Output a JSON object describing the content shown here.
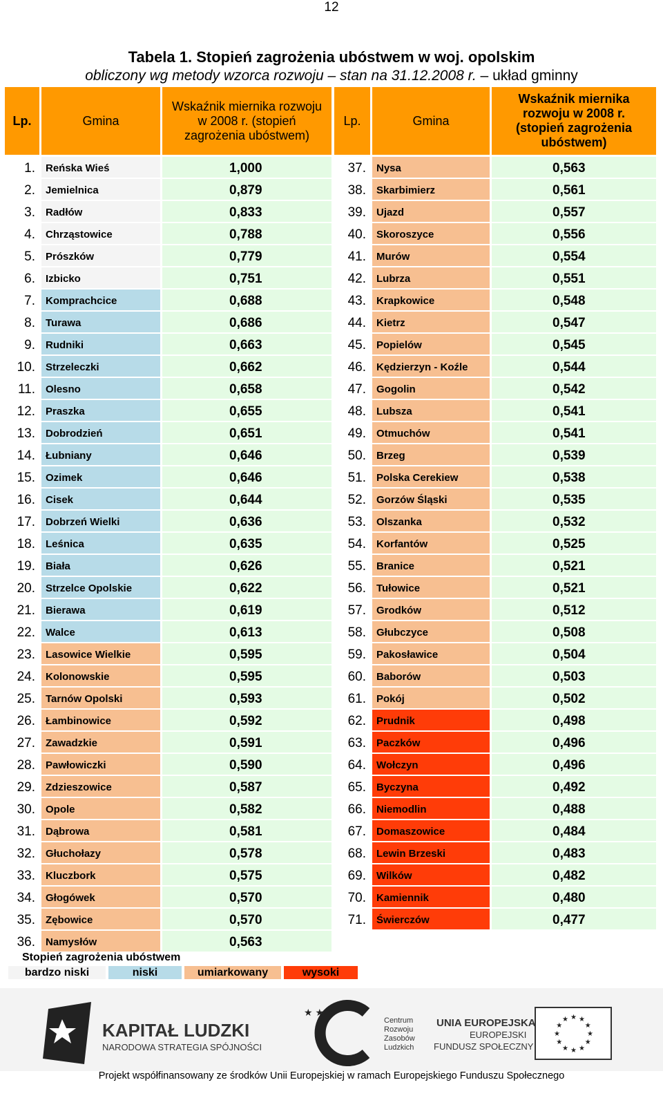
{
  "page_number": "12",
  "title_line1": "Tabela 1. Stopień zagrożenia ubóstwem w woj. opolskim",
  "title_line2_main": "obliczony wg metody wzorca rozwoju – stan na 31.12.2008 r.",
  "title_line2_tail": " – układ gminny",
  "headers": {
    "lp": "Lp.",
    "gmina": "Gmina",
    "wskaznik_left": "Wskaźnik miernika rozwoju w 2008 r. (stopień zagrożenia ubóstwem)",
    "wskaznik_right": "Wskaźnik miernika rozwoju w 2008 r. (stopień zagrożenia ubóstwem)"
  },
  "rows_left": [
    {
      "lp": "1.",
      "gmina": "Reńska Wieś",
      "value": "1,000",
      "level": "vlow"
    },
    {
      "lp": "2.",
      "gmina": "Jemielnica",
      "value": "0,879",
      "level": "vlow"
    },
    {
      "lp": "3.",
      "gmina": "Radłów",
      "value": "0,833",
      "level": "vlow"
    },
    {
      "lp": "4.",
      "gmina": "Chrząstowice",
      "value": "0,788",
      "level": "vlow"
    },
    {
      "lp": "5.",
      "gmina": "Prószków",
      "value": "0,779",
      "level": "vlow"
    },
    {
      "lp": "6.",
      "gmina": "Izbicko",
      "value": "0,751",
      "level": "vlow"
    },
    {
      "lp": "7.",
      "gmina": "Komprachcice",
      "value": "0,688",
      "level": "low"
    },
    {
      "lp": "8.",
      "gmina": "Turawa",
      "value": "0,686",
      "level": "low"
    },
    {
      "lp": "9.",
      "gmina": "Rudniki",
      "value": "0,663",
      "level": "low"
    },
    {
      "lp": "10.",
      "gmina": "Strzeleczki",
      "value": "0,662",
      "level": "low"
    },
    {
      "lp": "11.",
      "gmina": "Olesno",
      "value": "0,658",
      "level": "low"
    },
    {
      "lp": "12.",
      "gmina": "Praszka",
      "value": "0,655",
      "level": "low"
    },
    {
      "lp": "13.",
      "gmina": "Dobrodzień",
      "value": "0,651",
      "level": "low"
    },
    {
      "lp": "14.",
      "gmina": "Łubniany",
      "value": "0,646",
      "level": "low"
    },
    {
      "lp": "15.",
      "gmina": "Ozimek",
      "value": "0,646",
      "level": "low"
    },
    {
      "lp": "16.",
      "gmina": "Cisek",
      "value": "0,644",
      "level": "low"
    },
    {
      "lp": "17.",
      "gmina": "Dobrzeń Wielki",
      "value": "0,636",
      "level": "low"
    },
    {
      "lp": "18.",
      "gmina": "Leśnica",
      "value": "0,635",
      "level": "low"
    },
    {
      "lp": "19.",
      "gmina": "Biała",
      "value": "0,626",
      "level": "low"
    },
    {
      "lp": "20.",
      "gmina": "Strzelce Opolskie",
      "value": "0,622",
      "level": "low"
    },
    {
      "lp": "21.",
      "gmina": "Bierawa",
      "value": "0,619",
      "level": "low"
    },
    {
      "lp": "22.",
      "gmina": "Walce",
      "value": "0,613",
      "level": "low"
    },
    {
      "lp": "23.",
      "gmina": "Lasowice Wielkie",
      "value": "0,595",
      "level": "mod"
    },
    {
      "lp": "24.",
      "gmina": "Kolonowskie",
      "value": "0,595",
      "level": "mod"
    },
    {
      "lp": "25.",
      "gmina": "Tarnów Opolski",
      "value": "0,593",
      "level": "mod"
    },
    {
      "lp": "26.",
      "gmina": "Łambinowice",
      "value": "0,592",
      "level": "mod"
    },
    {
      "lp": "27.",
      "gmina": "Zawadzkie",
      "value": "0,591",
      "level": "mod"
    },
    {
      "lp": "28.",
      "gmina": "Pawłowiczki",
      "value": "0,590",
      "level": "mod"
    },
    {
      "lp": "29.",
      "gmina": "Zdzieszowice",
      "value": "0,587",
      "level": "mod"
    },
    {
      "lp": "30.",
      "gmina": "Opole",
      "value": "0,582",
      "level": "mod"
    },
    {
      "lp": "31.",
      "gmina": "Dąbrowa",
      "value": "0,581",
      "level": "mod"
    },
    {
      "lp": "32.",
      "gmina": "Głuchołazy",
      "value": "0,578",
      "level": "mod"
    },
    {
      "lp": "33.",
      "gmina": "Kluczbork",
      "value": "0,575",
      "level": "mod"
    },
    {
      "lp": "34.",
      "gmina": "Głogówek",
      "value": "0,570",
      "level": "mod"
    },
    {
      "lp": "35.",
      "gmina": "Zębowice",
      "value": "0,570",
      "level": "mod"
    },
    {
      "lp": "36.",
      "gmina": "Namysłów",
      "value": "0,563",
      "level": "mod"
    }
  ],
  "rows_right": [
    {
      "lp": "37.",
      "gmina": "Nysa",
      "value": "0,563",
      "level": "mod"
    },
    {
      "lp": "38.",
      "gmina": "Skarbimierz",
      "value": "0,561",
      "level": "mod"
    },
    {
      "lp": "39.",
      "gmina": "Ujazd",
      "value": "0,557",
      "level": "mod"
    },
    {
      "lp": "40.",
      "gmina": "Skoroszyce",
      "value": "0,556",
      "level": "mod"
    },
    {
      "lp": "41.",
      "gmina": "Murów",
      "value": "0,554",
      "level": "mod"
    },
    {
      "lp": "42.",
      "gmina": "Lubrza",
      "value": "0,551",
      "level": "mod"
    },
    {
      "lp": "43.",
      "gmina": "Krapkowice",
      "value": "0,548",
      "level": "mod"
    },
    {
      "lp": "44.",
      "gmina": "Kietrz",
      "value": "0,547",
      "level": "mod"
    },
    {
      "lp": "45.",
      "gmina": "Popielów",
      "value": "0,545",
      "level": "mod"
    },
    {
      "lp": "46.",
      "gmina": "Kędzierzyn - Koźle",
      "value": "0,544",
      "level": "mod"
    },
    {
      "lp": "47.",
      "gmina": "Gogolin",
      "value": "0,542",
      "level": "mod"
    },
    {
      "lp": "48.",
      "gmina": "Lubsza",
      "value": "0,541",
      "level": "mod"
    },
    {
      "lp": "49.",
      "gmina": "Otmuchów",
      "value": "0,541",
      "level": "mod"
    },
    {
      "lp": "50.",
      "gmina": "Brzeg",
      "value": "0,539",
      "level": "mod"
    },
    {
      "lp": "51.",
      "gmina": "Polska Cerekiew",
      "value": "0,538",
      "level": "mod"
    },
    {
      "lp": "52.",
      "gmina": "Gorzów Śląski",
      "value": "0,535",
      "level": "mod"
    },
    {
      "lp": "53.",
      "gmina": "Olszanka",
      "value": "0,532",
      "level": "mod"
    },
    {
      "lp": "54.",
      "gmina": "Korfantów",
      "value": "0,525",
      "level": "mod"
    },
    {
      "lp": "55.",
      "gmina": "Branice",
      "value": "0,521",
      "level": "mod"
    },
    {
      "lp": "56.",
      "gmina": "Tułowice",
      "value": "0,521",
      "level": "mod"
    },
    {
      "lp": "57.",
      "gmina": "Grodków",
      "value": "0,512",
      "level": "mod"
    },
    {
      "lp": "58.",
      "gmina": "Głubczyce",
      "value": "0,508",
      "level": "mod"
    },
    {
      "lp": "59.",
      "gmina": "Pakosławice",
      "value": "0,504",
      "level": "mod"
    },
    {
      "lp": "60.",
      "gmina": "Baborów",
      "value": "0,503",
      "level": "mod"
    },
    {
      "lp": "61.",
      "gmina": "Pokój",
      "value": "0,502",
      "level": "mod"
    },
    {
      "lp": "62.",
      "gmina": "Prudnik",
      "value": "0,498",
      "level": "high"
    },
    {
      "lp": "63.",
      "gmina": "Paczków",
      "value": "0,496",
      "level": "high"
    },
    {
      "lp": "64.",
      "gmina": "Wołczyn",
      "value": "0,496",
      "level": "high"
    },
    {
      "lp": "65.",
      "gmina": "Byczyna",
      "value": "0,492",
      "level": "high"
    },
    {
      "lp": "66.",
      "gmina": "Niemodlin",
      "value": "0,488",
      "level": "high"
    },
    {
      "lp": "67.",
      "gmina": "Domaszowice",
      "value": "0,484",
      "level": "high"
    },
    {
      "lp": "68.",
      "gmina": "Lewin Brzeski",
      "value": "0,483",
      "level": "high"
    },
    {
      "lp": "69.",
      "gmina": "Wilków",
      "value": "0,482",
      "level": "high"
    },
    {
      "lp": "70.",
      "gmina": "Kamiennik",
      "value": "0,480",
      "level": "high"
    },
    {
      "lp": "71.",
      "gmina": "Świerczów",
      "value": "0,477",
      "level": "high"
    }
  ],
  "legend": {
    "title": "Stopień zagrożenia ubóstwem",
    "items": [
      {
        "label": "bardzo niski",
        "level": "vlow"
      },
      {
        "label": "niski",
        "level": "low"
      },
      {
        "label": "umiarkowany",
        "level": "mod"
      },
      {
        "label": "wysoki",
        "level": "high"
      }
    ]
  },
  "logos": {
    "kapital_ludzki_title": "KAPITAŁ LUDZKI",
    "kapital_ludzki_subtitle": "NARODOWA STRATEGIA SPÓJNOŚCI",
    "crzl_line1": "Centrum",
    "crzl_line2": "Rozwoju",
    "crzl_line3": "Zasobów",
    "crzl_line4": "Ludzkich",
    "ue_line1": "UNIA EUROPEJSKA",
    "ue_line2": "EUROPEJSKI",
    "ue_line3": "FUNDUSZ SPOŁECZNY"
  },
  "footer": "Projekt współfinansowany ze środków Unii Europejskiej w ramach Europejskiego Funduszu Społecznego",
  "colors": {
    "header": "#ff9900",
    "vlow": "#f4f4f4",
    "low": "#b7dbe8",
    "mod": "#f7bf91",
    "high": "#ff3c08",
    "value_bg": "#e4fbe4"
  }
}
